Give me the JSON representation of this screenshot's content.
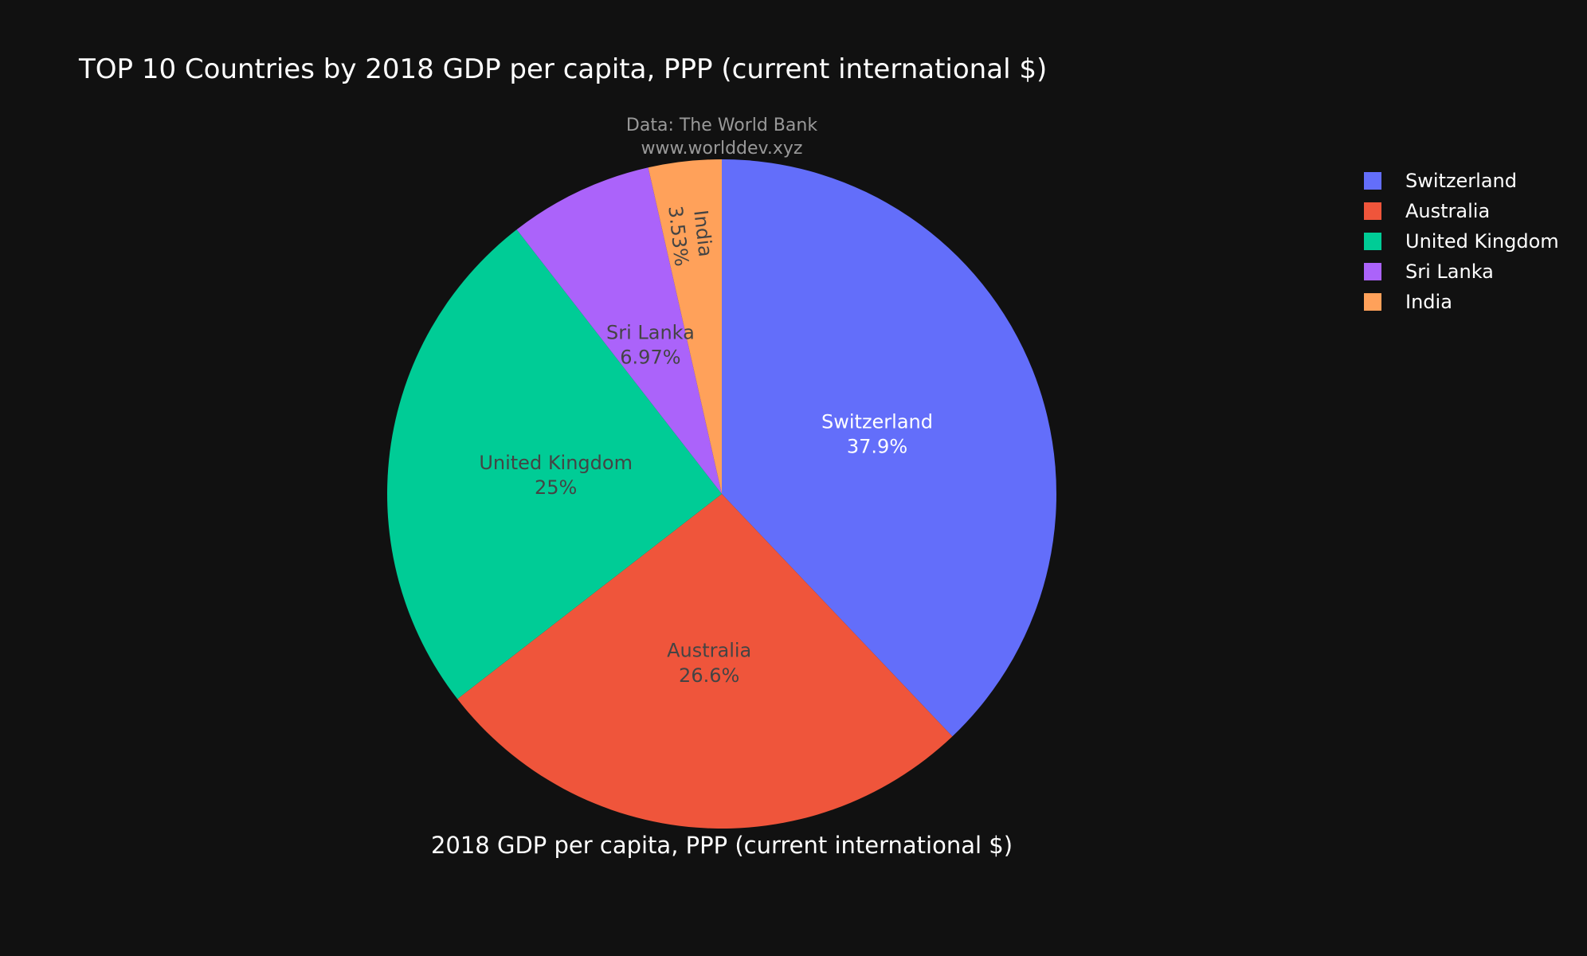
{
  "chart_data": {
    "type": "pie",
    "title": "TOP 10 Countries by 2018 GDP per capita, PPP (current international $)",
    "annotation": [
      "Data: The World Bank",
      "www.worlddev.xyz"
    ],
    "xlabel": "2018 GDP per capita, PPP (current international $)",
    "legend_position": "top-right",
    "categories": [
      "Switzerland",
      "Australia",
      "United Kingdom",
      "Sri Lanka",
      "India"
    ],
    "values": [
      37.9,
      26.6,
      25.0,
      6.97,
      3.53
    ],
    "slice_labels": [
      [
        "Switzerland",
        "37.9%"
      ],
      [
        "Australia",
        "26.6%"
      ],
      [
        "United Kingdom",
        "25%"
      ],
      [
        "Sri Lanka",
        "6.97%"
      ],
      [
        "India",
        "3.53%"
      ]
    ],
    "colors": [
      "#636efa",
      "#ef553b",
      "#00cc96",
      "#ab63fa",
      "#ffa15a"
    ],
    "label_text_colors": [
      "#ffffff",
      "#444444",
      "#444444",
      "#444444",
      "#444444"
    ],
    "legend_order": [
      "Switzerland",
      "Australia",
      "United Kingdom",
      "Sri Lanka",
      "India"
    ],
    "background": "#111111",
    "title_color": "#ffffff",
    "annotation_color": "#999999",
    "legend_text_color": "#ffffff"
  }
}
